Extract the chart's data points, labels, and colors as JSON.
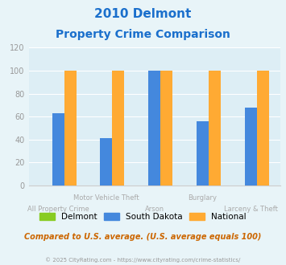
{
  "title_line1": "2010 Delmont",
  "title_line2": "Property Crime Comparison",
  "title_color": "#1a6fcc",
  "categories": [
    "All Property Crime",
    "Motor Vehicle Theft",
    "Arson",
    "Burglary",
    "Larceny & Theft"
  ],
  "x_labels_top": [
    "",
    "Motor Vehicle Theft",
    "",
    "Burglary",
    ""
  ],
  "x_labels_bottom": [
    "All Property Crime",
    "",
    "Arson",
    "",
    "Larceny & Theft"
  ],
  "series": {
    "Delmont": {
      "values": [
        0,
        0,
        0,
        0,
        0
      ],
      "color": "#88cc22"
    },
    "South Dakota": {
      "values": [
        63,
        41,
        100,
        56,
        68
      ],
      "color": "#4488dd"
    },
    "National": {
      "values": [
        100,
        100,
        100,
        100,
        100
      ],
      "color": "#ffaa33"
    }
  },
  "ylim": [
    0,
    120
  ],
  "yticks": [
    0,
    20,
    40,
    60,
    80,
    100,
    120
  ],
  "bar_width": 0.25,
  "fig_bg_color": "#e8f4f8",
  "plot_bg_color": "#ddeef5",
  "footnote": "Compared to U.S. average. (U.S. average equals 100)",
  "footnote_color": "#cc6600",
  "copyright": "© 2025 CityRating.com - https://www.cityrating.com/crime-statistics/",
  "copyright_color": "#999999",
  "label_color": "#aaaaaa",
  "tick_color": "#999999"
}
